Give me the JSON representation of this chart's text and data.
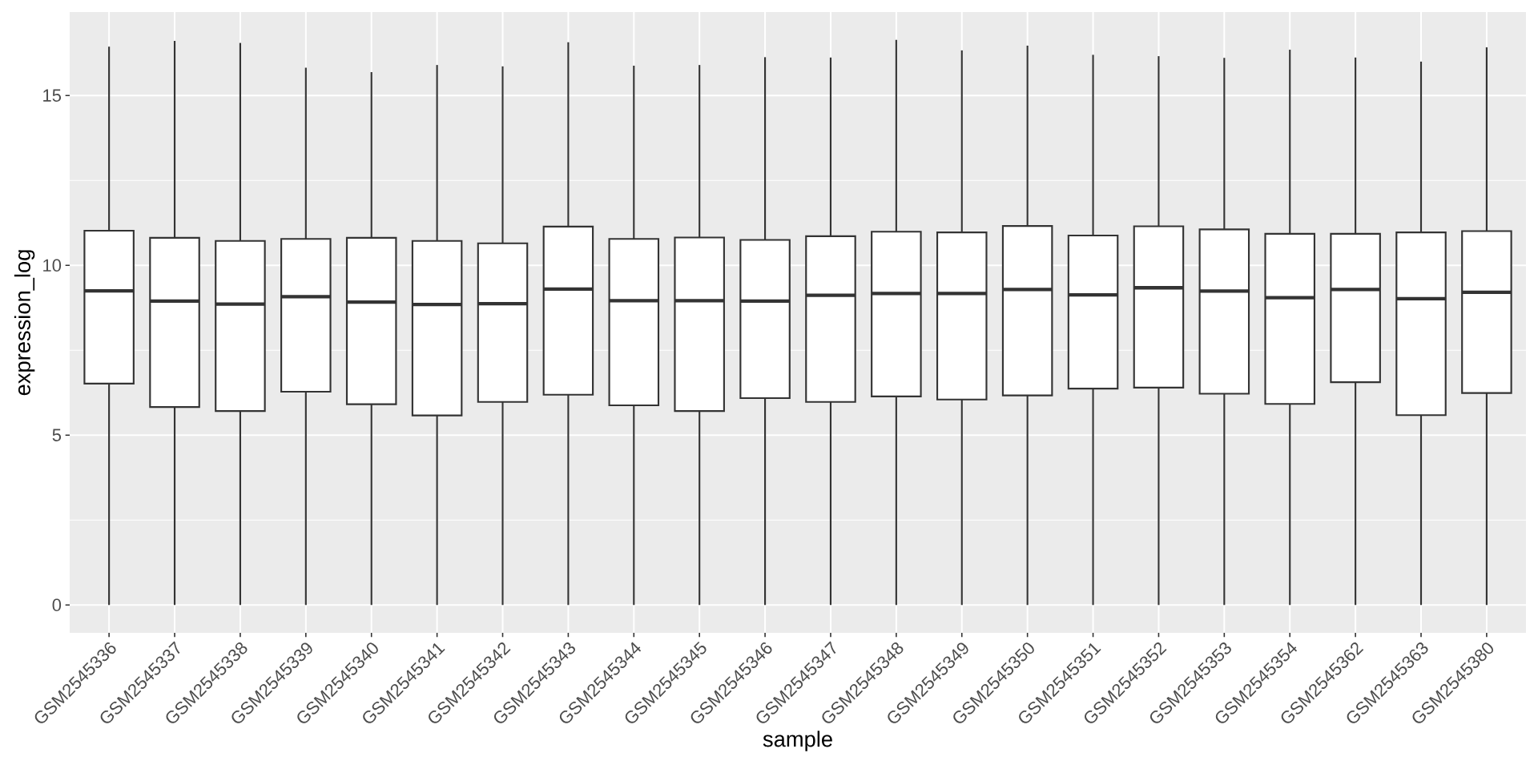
{
  "chart_data": {
    "type": "box",
    "xlabel": "sample",
    "ylabel": "expression_log",
    "color": "#333333",
    "categories": [
      "GSM2545336",
      "GSM2545337",
      "GSM2545338",
      "GSM2545339",
      "GSM2545340",
      "GSM2545341",
      "GSM2545342",
      "GSM2545343",
      "GSM2545344",
      "GSM2545345",
      "GSM2545346",
      "GSM2545347",
      "GSM2545348",
      "GSM2545349",
      "GSM2545350",
      "GSM2545351",
      "GSM2545352",
      "GSM2545353",
      "GSM2545354",
      "GSM2545362",
      "GSM2545363",
      "GSM2545380"
    ],
    "boxes": [
      {
        "low": 0,
        "q1": 6.52,
        "median": 9.25,
        "q3": 11.02,
        "high": 16.44
      },
      {
        "low": 0,
        "q1": 5.83,
        "median": 8.95,
        "q3": 10.81,
        "high": 16.61
      },
      {
        "low": 0,
        "q1": 5.71,
        "median": 8.86,
        "q3": 10.72,
        "high": 16.55
      },
      {
        "low": 0,
        "q1": 6.28,
        "median": 9.08,
        "q3": 10.78,
        "high": 15.82
      },
      {
        "low": 0,
        "q1": 5.91,
        "median": 8.92,
        "q3": 10.81,
        "high": 15.69
      },
      {
        "low": 0,
        "q1": 5.58,
        "median": 8.85,
        "q3": 10.72,
        "high": 15.9
      },
      {
        "low": 0,
        "q1": 5.98,
        "median": 8.87,
        "q3": 10.65,
        "high": 15.86
      },
      {
        "low": 0,
        "q1": 6.19,
        "median": 9.3,
        "q3": 11.14,
        "high": 16.57
      },
      {
        "low": 0,
        "q1": 5.88,
        "median": 8.96,
        "q3": 10.78,
        "high": 15.88
      },
      {
        "low": 0,
        "q1": 5.71,
        "median": 8.96,
        "q3": 10.82,
        "high": 15.9
      },
      {
        "low": 0,
        "q1": 6.09,
        "median": 8.95,
        "q3": 10.75,
        "high": 16.13
      },
      {
        "low": 0,
        "q1": 5.98,
        "median": 9.12,
        "q3": 10.86,
        "high": 16.12
      },
      {
        "low": 0,
        "q1": 6.14,
        "median": 9.17,
        "q3": 10.99,
        "high": 16.64
      },
      {
        "low": 0,
        "q1": 6.05,
        "median": 9.17,
        "q3": 10.97,
        "high": 16.33
      },
      {
        "low": 0,
        "q1": 6.17,
        "median": 9.29,
        "q3": 11.16,
        "high": 16.47
      },
      {
        "low": 0,
        "q1": 6.37,
        "median": 9.13,
        "q3": 10.88,
        "high": 16.2
      },
      {
        "low": 0,
        "q1": 6.4,
        "median": 9.34,
        "q3": 11.15,
        "high": 16.16
      },
      {
        "low": 0,
        "q1": 6.22,
        "median": 9.24,
        "q3": 11.06,
        "high": 16.11
      },
      {
        "low": 0,
        "q1": 5.92,
        "median": 9.05,
        "q3": 10.93,
        "high": 16.35
      },
      {
        "low": 0,
        "q1": 6.56,
        "median": 9.29,
        "q3": 10.93,
        "high": 16.12
      },
      {
        "low": 0,
        "q1": 5.59,
        "median": 9.02,
        "q3": 10.97,
        "high": 16.0
      },
      {
        "low": 0,
        "q1": 6.24,
        "median": 9.21,
        "q3": 11.01,
        "high": 16.42
      }
    ],
    "ylim": [
      -0.82,
      17.46
    ],
    "yticks": [
      0,
      5,
      10,
      15
    ],
    "grid": true
  }
}
